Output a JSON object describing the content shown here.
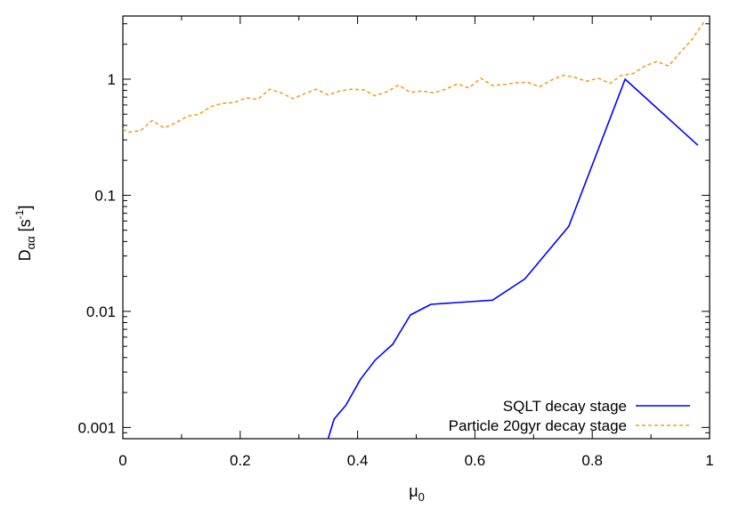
{
  "chart_data": {
    "type": "line",
    "title": "",
    "xlabel": "μ0",
    "ylabel": "Dαα [s-1]",
    "xlim": [
      0,
      1
    ],
    "ylim": [
      0.0008,
      3.5
    ],
    "yscale": "log",
    "grid": false,
    "legend_position": "bottom-right",
    "x_ticks": [
      {
        "value": 0,
        "label": "0"
      },
      {
        "value": 0.2,
        "label": "0.2"
      },
      {
        "value": 0.4,
        "label": "0.4"
      },
      {
        "value": 0.6,
        "label": "0.6"
      },
      {
        "value": 0.8,
        "label": "0.8"
      },
      {
        "value": 1,
        "label": "1"
      }
    ],
    "y_ticks": [
      {
        "value": 0.001,
        "label": "0.001"
      },
      {
        "value": 0.01,
        "label": "0.01"
      },
      {
        "value": 0.1,
        "label": "0.1"
      },
      {
        "value": 1,
        "label": "1"
      }
    ],
    "series": [
      {
        "name": "SQLT decay stage",
        "color": "#0000ff",
        "dash": "solid",
        "x": [
          0.35,
          0.36,
          0.38,
          0.405,
          0.43,
          0.46,
          0.49,
          0.525,
          0.63,
          0.685,
          0.76,
          0.856,
          0.98
        ],
        "y": [
          0.0008,
          0.00118,
          0.00155,
          0.0026,
          0.0038,
          0.0052,
          0.0093,
          0.0115,
          0.0125,
          0.019,
          0.054,
          1.0,
          0.27
        ]
      },
      {
        "name": "Particle 20gyr decay stage",
        "color": "#f0a020",
        "dash": "dashed",
        "x": [
          0,
          0.01,
          0.03,
          0.05,
          0.07,
          0.09,
          0.11,
          0.13,
          0.15,
          0.17,
          0.19,
          0.21,
          0.23,
          0.25,
          0.27,
          0.29,
          0.31,
          0.33,
          0.35,
          0.37,
          0.39,
          0.41,
          0.43,
          0.45,
          0.47,
          0.49,
          0.51,
          0.53,
          0.55,
          0.57,
          0.59,
          0.61,
          0.63,
          0.65,
          0.67,
          0.69,
          0.71,
          0.73,
          0.75,
          0.77,
          0.79,
          0.81,
          0.83,
          0.85,
          0.87,
          0.89,
          0.91,
          0.93,
          0.95,
          0.97,
          0.99
        ],
        "y": [
          0.37,
          0.35,
          0.36,
          0.44,
          0.38,
          0.42,
          0.48,
          0.5,
          0.58,
          0.62,
          0.63,
          0.69,
          0.67,
          0.82,
          0.76,
          0.68,
          0.75,
          0.82,
          0.73,
          0.79,
          0.82,
          0.81,
          0.72,
          0.78,
          0.89,
          0.77,
          0.79,
          0.76,
          0.82,
          0.91,
          0.84,
          1.02,
          0.88,
          0.9,
          0.93,
          0.94,
          0.86,
          0.98,
          1.08,
          1.04,
          0.96,
          1.02,
          0.92,
          1.08,
          1.12,
          1.3,
          1.42,
          1.3,
          1.7,
          2.2,
          3.1
        ]
      }
    ]
  }
}
